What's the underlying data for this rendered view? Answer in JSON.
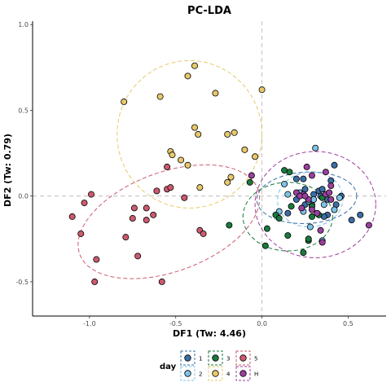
{
  "chart_data": {
    "type": "scatter",
    "title": "PC-LDA",
    "xlabel": "DF1 (Tw: 4.46)",
    "ylabel": "DF2 (Tw: 0.79)",
    "xlim": [
      -1.33,
      0.72
    ],
    "ylim": [
      -0.7,
      1.02
    ],
    "xticks": [
      -1.0,
      -0.5,
      0.0,
      0.5
    ],
    "yticks": [
      -0.5,
      0.0,
      0.5,
      1.0
    ],
    "reference_lines": {
      "x": 0,
      "y": 0,
      "style": "dashed"
    },
    "grid": false,
    "legend": {
      "title": "day",
      "position": "bottom"
    },
    "series": [
      {
        "name": "1",
        "color": "#3b6ea5",
        "ellipse": {
          "cx": 0.26,
          "cy": -0.01,
          "rx": 0.29,
          "ry": 0.15,
          "angle": -3
        },
        "points": [
          [
            0.2,
            0.1
          ],
          [
            0.24,
            0.1
          ],
          [
            0.25,
            0.04
          ],
          [
            0.3,
            0.01
          ],
          [
            0.33,
            0.03
          ],
          [
            0.35,
            0.04
          ],
          [
            0.42,
            0.18
          ],
          [
            0.46,
            0.0
          ],
          [
            0.4,
            0.09
          ],
          [
            0.43,
            -0.05
          ],
          [
            0.38,
            -0.11
          ],
          [
            0.52,
            -0.14
          ],
          [
            0.57,
            -0.11
          ],
          [
            0.36,
            -0.12
          ],
          [
            0.15,
            -0.1
          ],
          [
            0.25,
            -0.05
          ],
          [
            0.29,
            -0.05
          ],
          [
            0.34,
            0.0
          ],
          [
            0.38,
            -0.02
          ],
          [
            0.2,
            -0.02
          ]
        ]
      },
      {
        "name": "2",
        "color": "#7ec3e8",
        "ellipse": {
          "cx": 0.28,
          "cy": -0.02,
          "rx": 0.19,
          "ry": 0.16,
          "angle": -5
        },
        "points": [
          [
            0.31,
            0.28
          ],
          [
            0.13,
            0.07
          ],
          [
            0.15,
            0.01
          ],
          [
            0.1,
            -0.09
          ],
          [
            0.27,
            -0.03
          ],
          [
            0.3,
            -0.02
          ],
          [
            0.36,
            -0.05
          ],
          [
            0.42,
            -0.08
          ],
          [
            0.45,
            -0.01
          ],
          [
            0.28,
            -0.18
          ],
          [
            0.35,
            -0.26
          ],
          [
            0.22,
            0.02
          ],
          [
            0.24,
            -0.09
          ]
        ]
      },
      {
        "name": "3",
        "color": "#1a7a3c",
        "ellipse": {
          "cx": 0.15,
          "cy": -0.12,
          "rx": 0.26,
          "ry": 0.2,
          "angle": 0
        },
        "points": [
          [
            0.13,
            0.15
          ],
          [
            0.16,
            0.14
          ],
          [
            -0.07,
            0.08
          ],
          [
            -0.19,
            -0.17
          ],
          [
            0.02,
            -0.29
          ],
          [
            0.15,
            -0.23
          ],
          [
            0.24,
            -0.33
          ],
          [
            0.27,
            -0.26
          ],
          [
            0.17,
            -0.06
          ],
          [
            0.08,
            -0.11
          ],
          [
            0.1,
            -0.13
          ],
          [
            0.03,
            -0.19
          ],
          [
            0.27,
            -0.25
          ],
          [
            0.33,
            -0.11
          ],
          [
            0.29,
            -0.12
          ],
          [
            0.29,
            -0.06
          ],
          [
            0.35,
            -0.01
          ]
        ]
      },
      {
        "name": "4",
        "color": "#e8c96a",
        "ellipse": {
          "cx": -0.42,
          "cy": 0.36,
          "rx": 0.42,
          "ry": 0.43,
          "angle": 0
        },
        "points": [
          [
            -0.39,
            0.76
          ],
          [
            -0.43,
            0.7
          ],
          [
            -0.8,
            0.55
          ],
          [
            -0.59,
            0.58
          ],
          [
            -0.27,
            0.6
          ],
          [
            0.0,
            0.62
          ],
          [
            -0.39,
            0.4
          ],
          [
            -0.37,
            0.36
          ],
          [
            -0.2,
            0.36
          ],
          [
            -0.16,
            0.37
          ],
          [
            -0.1,
            0.27
          ],
          [
            -0.53,
            0.26
          ],
          [
            -0.52,
            0.24
          ],
          [
            -0.47,
            0.21
          ],
          [
            -0.43,
            0.18
          ],
          [
            -0.04,
            0.23
          ],
          [
            -0.18,
            0.11
          ],
          [
            -0.36,
            0.05
          ],
          [
            -0.2,
            0.08
          ]
        ]
      },
      {
        "name": "5",
        "color": "#cc5a6e",
        "ellipse": {
          "cx": -0.54,
          "cy": -0.15,
          "rx": 0.55,
          "ry": 0.29,
          "angle": -20
        },
        "points": [
          [
            -0.55,
            0.17
          ],
          [
            -0.55,
            0.04
          ],
          [
            -0.53,
            0.05
          ],
          [
            -0.61,
            0.03
          ],
          [
            -0.45,
            -0.01
          ],
          [
            -0.99,
            0.01
          ],
          [
            -1.03,
            -0.04
          ],
          [
            -1.1,
            -0.12
          ],
          [
            -0.74,
            -0.07
          ],
          [
            -0.67,
            -0.07
          ],
          [
            -0.75,
            -0.13
          ],
          [
            -0.67,
            -0.14
          ],
          [
            -0.63,
            -0.11
          ],
          [
            -1.05,
            -0.22
          ],
          [
            -0.79,
            -0.24
          ],
          [
            -0.96,
            -0.37
          ],
          [
            -0.72,
            -0.35
          ],
          [
            -0.36,
            -0.2
          ],
          [
            -0.34,
            -0.22
          ],
          [
            -0.58,
            -0.5
          ],
          [
            -0.97,
            -0.5
          ]
        ]
      },
      {
        "name": "H",
        "color": "#9b3f9e",
        "ellipse": {
          "cx": 0.31,
          "cy": -0.05,
          "rx": 0.35,
          "ry": 0.31,
          "angle": 0
        },
        "points": [
          [
            0.26,
            0.17
          ],
          [
            0.37,
            0.14
          ],
          [
            0.29,
            0.12
          ],
          [
            0.4,
            0.06
          ],
          [
            -0.06,
            0.12
          ],
          [
            0.2,
            0.02
          ],
          [
            0.24,
            0.01
          ],
          [
            0.27,
            -0.02
          ],
          [
            0.37,
            0.01
          ],
          [
            0.39,
            0.02
          ],
          [
            0.4,
            -0.02
          ],
          [
            0.23,
            -0.07
          ],
          [
            0.34,
            -0.2
          ],
          [
            0.35,
            -0.27
          ],
          [
            0.62,
            -0.17
          ],
          [
            0.29,
            -0.08
          ],
          [
            0.32,
            -0.1
          ],
          [
            0.22,
            0.0
          ],
          [
            0.25,
            0.0
          ]
        ]
      }
    ]
  }
}
